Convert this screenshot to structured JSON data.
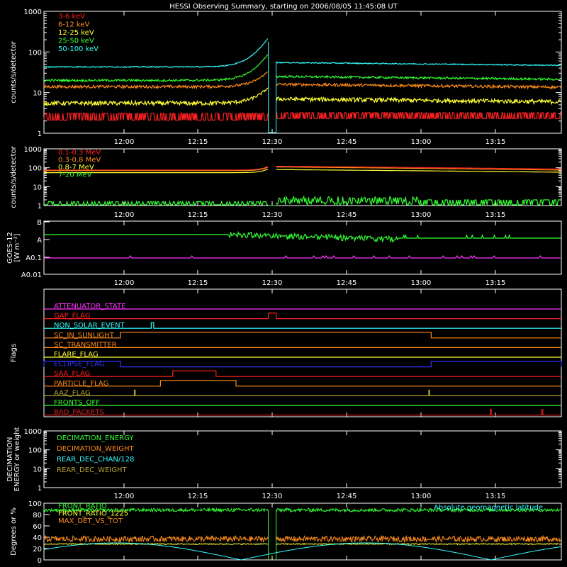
{
  "title": "HESSI Observing Summary, starting on 2006/08/05 11:45:08 UT",
  "colors": {
    "background": "#000000",
    "axes": "#ffffff",
    "red": "#ff2020",
    "orange": "#ff8c1a",
    "yellow": "#ffff33",
    "green": "#33ff33",
    "cyan": "#33ffff",
    "magenta": "#ff33ff",
    "blue": "#3333ff",
    "olive": "#b0a030",
    "darkred": "#d02020"
  },
  "x_axis": {
    "start": 11.752,
    "end": 13.43,
    "tick_labels": [
      "12:00",
      "12:15",
      "12:30",
      "12:45",
      "13:00",
      "13:15"
    ]
  },
  "chart_data": [
    {
      "id": "panel1",
      "type": "line",
      "ylabel": "counts/s/detector",
      "yscale": "log",
      "ylim": [
        1,
        1000
      ],
      "y_tick_labels": [
        "1",
        "10",
        "100",
        "1000"
      ],
      "legend": [
        "3-6 keV",
        "6-12 keV",
        "12-25 keV",
        "25-50 keV",
        "50-100 keV"
      ],
      "data_gap": [
        12.48,
        12.505
      ],
      "series": [
        {
          "name": "3-6 keV",
          "color": "red",
          "before": 2.5,
          "after": 2.8,
          "noise": 0.5,
          "rise": 2
        },
        {
          "name": "6-12 keV",
          "color": "orange",
          "before": 14,
          "after": 16,
          "noise": 0.08,
          "rise": 20
        },
        {
          "name": "12-25 keV",
          "color": "yellow",
          "before": 5.5,
          "after": 7,
          "noise": 0.12,
          "rise": 8
        },
        {
          "name": "25-50 keV",
          "color": "green",
          "before": 20,
          "after": 25,
          "noise": 0.06,
          "rise": 70
        },
        {
          "name": "50-100 keV",
          "color": "cyan",
          "before": 43,
          "after": 55,
          "noise": 0.03,
          "rise": 180
        }
      ]
    },
    {
      "id": "panel2",
      "type": "line",
      "ylabel": "counts/s/detector",
      "yscale": "log",
      "ylim": [
        1,
        1000
      ],
      "y_tick_labels": [
        "1",
        "10",
        "100",
        "1000"
      ],
      "legend": [
        "0.1-0.3 MeV",
        "0.3-0.8 MeV",
        "0.8-7 MeV",
        "7-20 MeV"
      ],
      "series": [
        {
          "name": "0.1-0.3 MeV",
          "color": "red",
          "before": 75,
          "after": 120,
          "end": 85
        },
        {
          "name": "0.3-0.8 MeV",
          "color": "orange",
          "before": 70,
          "after": 110,
          "end": 75
        },
        {
          "name": "0.8-7 MeV",
          "color": "yellow",
          "before": 55,
          "after": 80,
          "end": 58
        },
        {
          "name": "7-20 MeV",
          "color": "green",
          "before": 1.2,
          "after": 1.3,
          "end": 1.2
        }
      ]
    },
    {
      "id": "panel3",
      "type": "line",
      "ylabel": "GOES-12",
      "ylabel2": "[W m⁻²]",
      "y_tick_labels": [
        "A0.01",
        "A0.1",
        "A",
        "B"
      ],
      "series": [
        {
          "name": "GOES long",
          "color": "green",
          "level": "A"
        },
        {
          "name": "GOES short",
          "color": "magenta",
          "level": "A0.1"
        }
      ]
    },
    {
      "id": "panel4",
      "type": "line",
      "ylabel": "Flags",
      "flags": [
        {
          "name": "ATTENUATOR_STATE",
          "color": "magenta",
          "on": []
        },
        {
          "name": "GAP_FLAG",
          "color": "red",
          "on": [
            [
              12.48,
              12.505
            ]
          ]
        },
        {
          "name": "NON_SOLAR_EVENT",
          "color": "cyan",
          "on": [
            [
              12.1,
              12.108
            ]
          ]
        },
        {
          "name": "SC_IN_SUNLIGHT",
          "color": "orange",
          "on": [
            [
              12.0,
              13.008
            ]
          ]
        },
        {
          "name": "SC_TRANSMITTER",
          "color": "orange",
          "on": []
        },
        {
          "name": "FLARE_FLAG",
          "color": "yellow",
          "on": []
        },
        {
          "name": "ECLIPSE_FLAG",
          "color": "blue",
          "on": [
            [
              11.752,
              12.0
            ],
            [
              13.008,
              13.43
            ]
          ]
        },
        {
          "name": "SAA_FLAG",
          "color": "red",
          "on": [
            [
              12.17,
              12.31
            ]
          ]
        },
        {
          "name": "PARTICLE_FLAG",
          "color": "orange",
          "on": [
            [
              12.13,
              12.375
            ]
          ]
        },
        {
          "name": "AAZ_FLAG",
          "color": "olive",
          "on": [
            [
              12.045,
              12.048
            ],
            [
              13.0,
              13.003
            ]
          ]
        },
        {
          "name": "FRONTS_OFF",
          "color": "green",
          "on": []
        },
        {
          "name": "BAD_PACKETS",
          "color": "darkred",
          "on": [
            [
              13.2,
              13.203
            ],
            [
              13.367,
              13.37
            ]
          ]
        }
      ]
    },
    {
      "id": "panel5",
      "type": "line",
      "ylabel": "DECIMATION",
      "ylabel2": "ENERGY or weight",
      "yscale": "log",
      "ylim": [
        1,
        1000
      ],
      "y_tick_labels": [
        "1",
        "10",
        "100",
        "1000"
      ],
      "legend": [
        "DECIMATION_ENERGY",
        "DECIMATION_WEIGHT",
        "REAR_DEC_CHAN/128",
        "REAR_DEC_WEIGHT"
      ]
    },
    {
      "id": "panel6",
      "type": "line",
      "ylabel": "Degrees or %",
      "ylim": [
        0,
        100
      ],
      "y_tick_labels": [
        "0",
        "20",
        "40",
        "60",
        "80",
        "100"
      ],
      "legend": [
        "FRONT_RATIO",
        "FRONT_RATIO_1225",
        "MAX_DET_VS_TOT"
      ],
      "annotation": "Absolute geomagnetic latitude",
      "series": [
        {
          "name": "FRONT_RATIO",
          "color": "green",
          "level": 88,
          "noise": 3
        },
        {
          "name": "FRONT_RATIO_1225",
          "color": "yellow",
          "level": 28,
          "noise": 1
        },
        {
          "name": "MAX_DET_VS_TOT",
          "color": "orange",
          "level": 37,
          "noise": 5
        },
        {
          "name": "Absolute geomagnetic latitude",
          "color": "cyan",
          "peak": 30
        }
      ]
    }
  ]
}
